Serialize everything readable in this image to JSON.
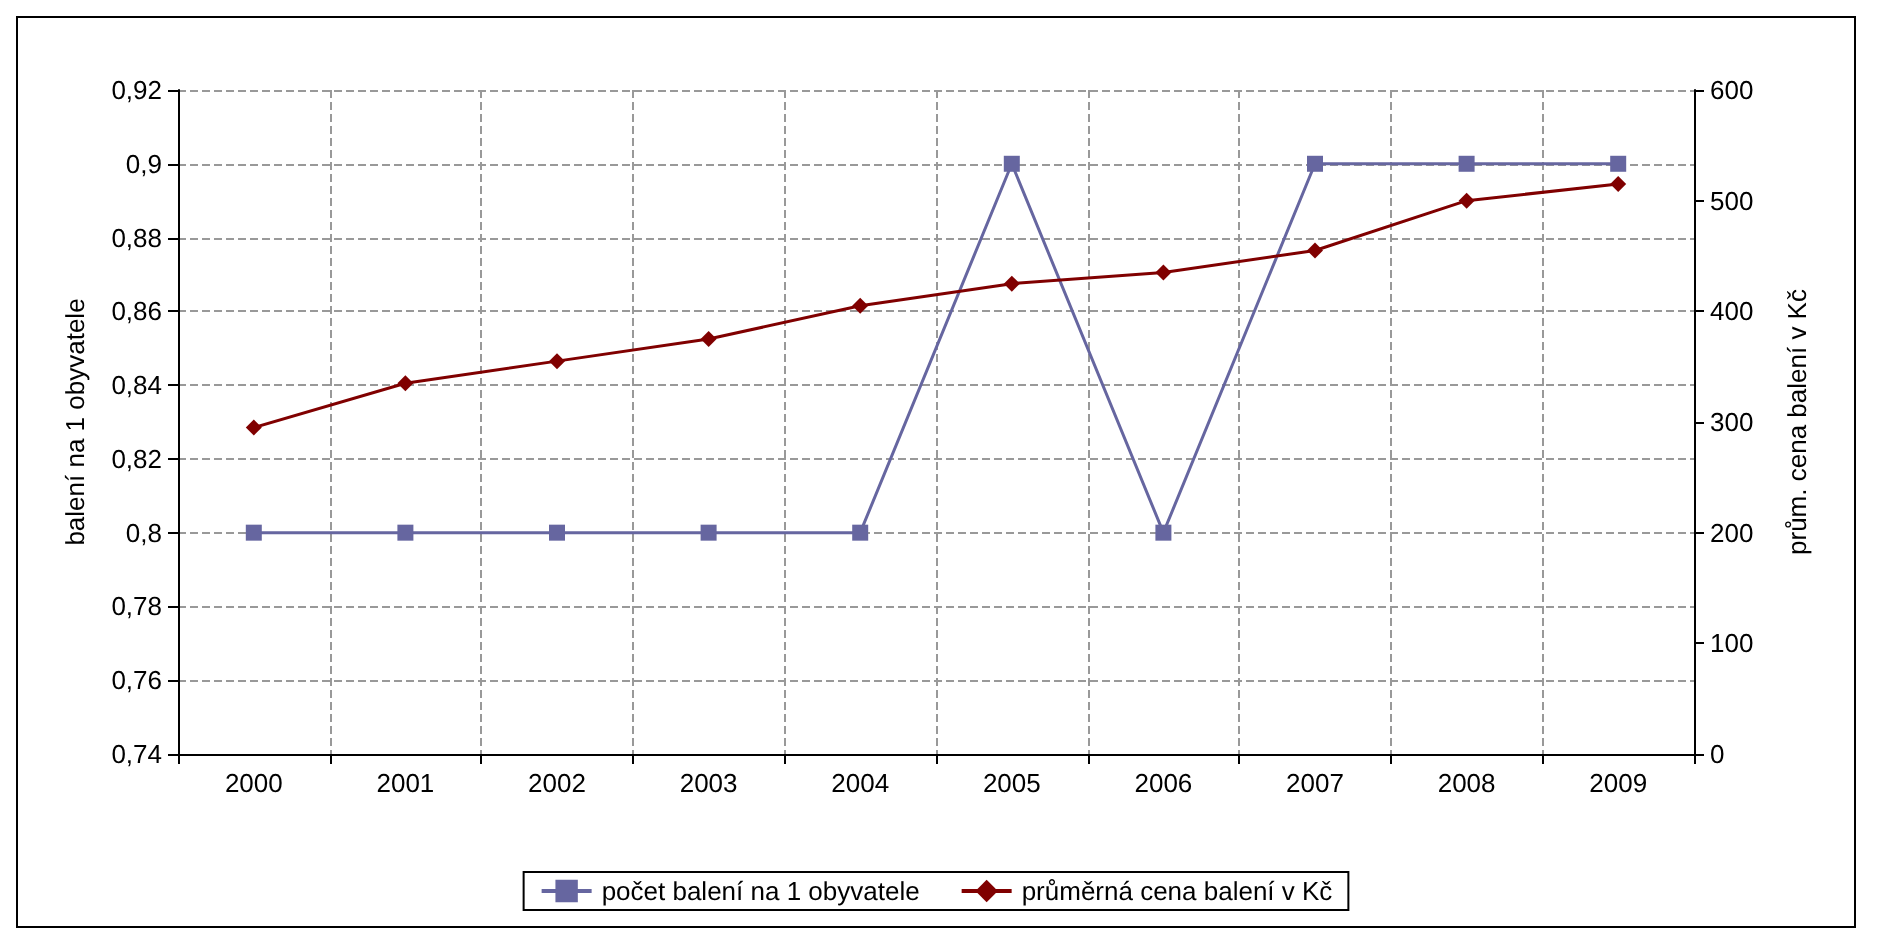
{
  "chart_data": {
    "type": "line",
    "categories": [
      "2000",
      "2001",
      "2002",
      "2003",
      "2004",
      "2005",
      "2006",
      "2007",
      "2008",
      "2009"
    ],
    "series": [
      {
        "name": "počet balení na 1 obyvatele",
        "color": "#6666a0",
        "marker": "square",
        "values": [
          0.8,
          0.8,
          0.8,
          0.8,
          0.8,
          0.9,
          0.8,
          0.9,
          0.9,
          0.9
        ]
      },
      {
        "name": "průměrná cena balení v Kč",
        "color": "#800000",
        "marker": "diamond",
        "axis": "y2",
        "values": [
          295,
          335,
          355,
          375,
          405,
          425,
          435,
          455,
          500,
          515
        ]
      }
    ],
    "ylabel": "balení na 1 obyvatele",
    "y2label": "prům. cena balení v Kč",
    "ylim": [
      0.74,
      0.92
    ],
    "yticks": [
      {
        "value": 0.74,
        "label": "0,74"
      },
      {
        "value": 0.76,
        "label": "0,76"
      },
      {
        "value": 0.78,
        "label": "0,78"
      },
      {
        "value": 0.8,
        "label": "0,8"
      },
      {
        "value": 0.82,
        "label": "0,82"
      },
      {
        "value": 0.84,
        "label": "0,84"
      },
      {
        "value": 0.86,
        "label": "0,86"
      },
      {
        "value": 0.88,
        "label": "0,88"
      },
      {
        "value": 0.9,
        "label": "0,9"
      },
      {
        "value": 0.92,
        "label": "0,92"
      }
    ],
    "y2lim": [
      0,
      600
    ],
    "y2ticks": [
      0,
      100,
      200,
      300,
      400,
      500,
      600
    ],
    "grid": true,
    "legend": "bottom",
    "line_style": "solid"
  }
}
